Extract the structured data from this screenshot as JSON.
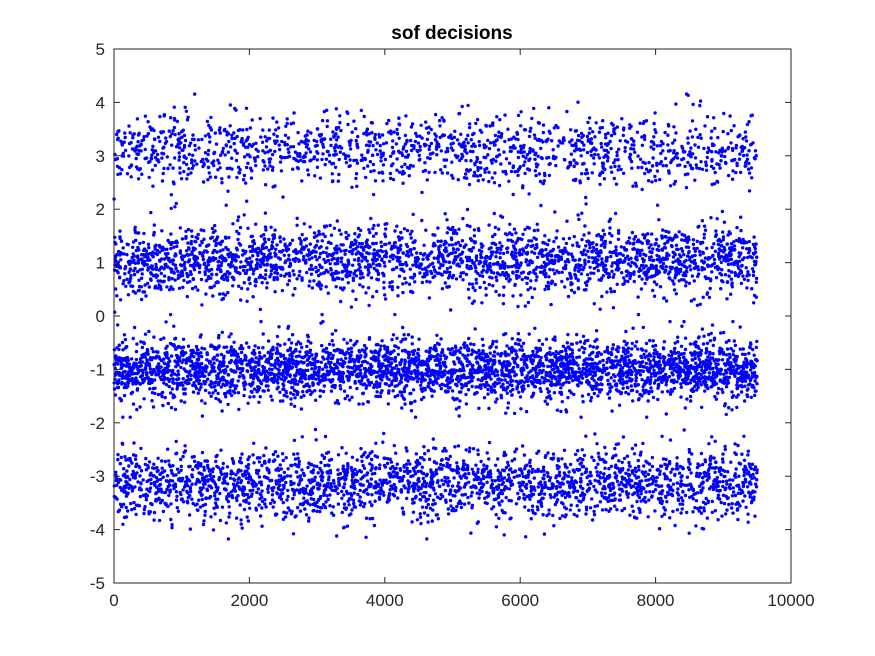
{
  "chart_data": {
    "type": "scatter",
    "title": "sof decisions",
    "xlabel": "",
    "ylabel": "",
    "xlim": [
      0,
      10000
    ],
    "ylim": [
      -5,
      5
    ],
    "xticks": [
      0,
      2000,
      4000,
      6000,
      8000,
      10000
    ],
    "yticks": [
      -5,
      -4,
      -3,
      -2,
      -1,
      0,
      1,
      2,
      3,
      4,
      5
    ],
    "xtick_labels": [
      "0",
      "2000",
      "4000",
      "6000",
      "8000",
      "10000"
    ],
    "ytick_labels": [
      "-5",
      "-4",
      "-3",
      "-2",
      "-1",
      "0",
      "1",
      "2",
      "3",
      "4",
      "5"
    ],
    "grid": false,
    "marker_color": "#0000ff",
    "x_extent": [
      1,
      9500
    ],
    "series": [
      {
        "approximate_point_count": 9500,
        "cluster_levels": [
          3.1,
          1.05,
          -1.0,
          -3.15
        ],
        "cluster_spread": [
          0.33,
          0.32,
          0.28,
          0.32
        ],
        "cluster_fraction": [
          0.15,
          0.25,
          0.35,
          0.25
        ]
      }
    ]
  }
}
